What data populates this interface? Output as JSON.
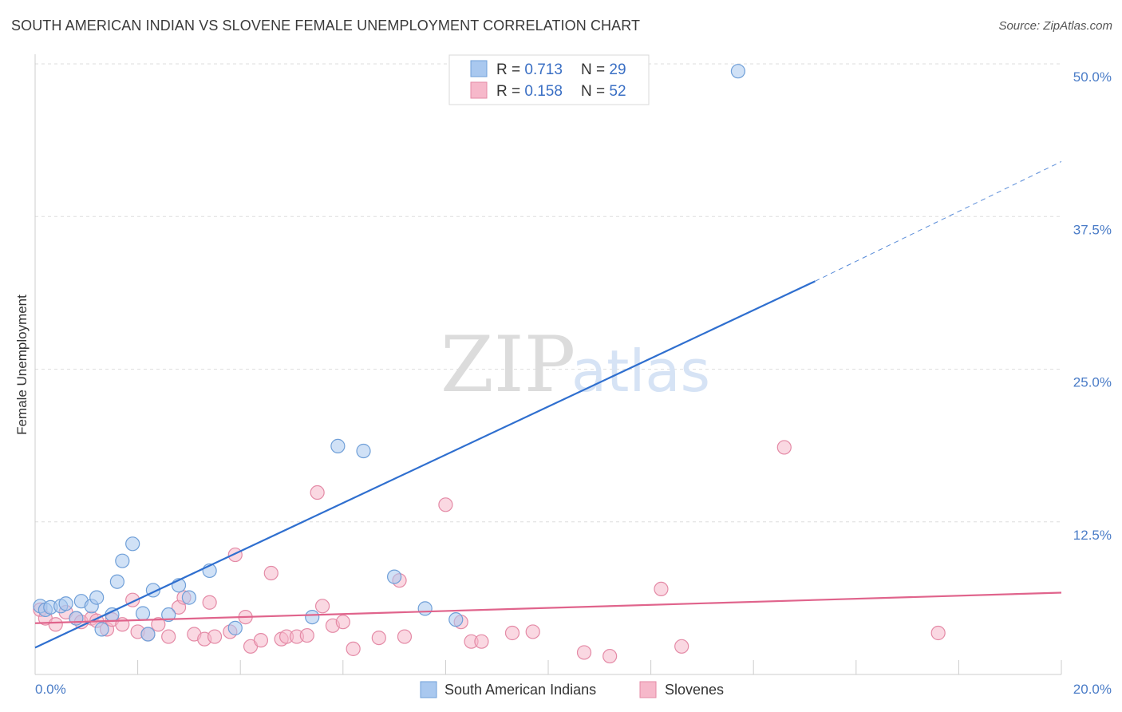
{
  "title": "SOUTH AMERICAN INDIAN VS SLOVENE FEMALE UNEMPLOYMENT CORRELATION CHART",
  "source": "Source: ZipAtlas.com",
  "watermark": {
    "zip": "ZIP",
    "atlas": "atlas"
  },
  "legend": [
    {
      "r_label": "R = ",
      "r_value": "0.713",
      "n_label": "N = ",
      "n_value": "29",
      "color": "#a9c8ef"
    },
    {
      "r_label": "R = ",
      "r_value": "0.158",
      "n_label": "N = ",
      "n_value": "52",
      "color": "#f6b8ca"
    }
  ],
  "chart_data": {
    "type": "scatter",
    "title": "SOUTH AMERICAN INDIAN VS SLOVENE FEMALE UNEMPLOYMENT CORRELATION CHART",
    "xlabel": "",
    "ylabel": "Female Unemployment",
    "xlim": [
      0,
      20
    ],
    "ylim": [
      0,
      50
    ],
    "x_tick_labels": [
      "0.0%",
      "20.0%"
    ],
    "y_ticks": [
      12.5,
      25.0,
      37.5,
      50.0
    ],
    "y_tick_labels": [
      "12.5%",
      "25.0%",
      "37.5%",
      "50.0%"
    ],
    "grid": true,
    "legend_position": "top-center",
    "series": [
      {
        "name": "South American Indians",
        "color": "#a9c8ef",
        "edge": "#6f9fd8",
        "trend_color": "#2f6fcf",
        "trend": {
          "x0": 0,
          "y0": 2.2,
          "x1": 15.2,
          "y1": 32.2,
          "dash_to_x": 20,
          "dash_to_y": 42.0
        },
        "points": [
          [
            0.1,
            5.6
          ],
          [
            0.2,
            5.3
          ],
          [
            0.3,
            5.5
          ],
          [
            0.5,
            5.6
          ],
          [
            0.6,
            5.8
          ],
          [
            0.8,
            4.6
          ],
          [
            0.9,
            6.0
          ],
          [
            1.1,
            5.6
          ],
          [
            1.2,
            6.3
          ],
          [
            1.3,
            3.7
          ],
          [
            1.5,
            4.9
          ],
          [
            1.6,
            7.6
          ],
          [
            1.7,
            9.3
          ],
          [
            1.9,
            10.7
          ],
          [
            2.1,
            5.0
          ],
          [
            2.2,
            3.3
          ],
          [
            2.3,
            6.9
          ],
          [
            2.6,
            4.9
          ],
          [
            2.8,
            7.3
          ],
          [
            3.0,
            6.3
          ],
          [
            3.4,
            8.5
          ],
          [
            3.9,
            3.8
          ],
          [
            5.4,
            4.7
          ],
          [
            5.9,
            18.7
          ],
          [
            6.4,
            18.3
          ],
          [
            7.0,
            8.0
          ],
          [
            7.6,
            5.4
          ],
          [
            8.2,
            4.5
          ],
          [
            13.7,
            49.4
          ]
        ]
      },
      {
        "name": "Slovenes",
        "color": "#f6b8ca",
        "edge": "#e48aa6",
        "trend_color": "#e0648c",
        "trend": {
          "x0": 0,
          "y0": 4.2,
          "x1": 20,
          "y1": 6.7
        },
        "points": [
          [
            0.1,
            5.3
          ],
          [
            0.2,
            4.6
          ],
          [
            0.4,
            4.1
          ],
          [
            0.6,
            5.1
          ],
          [
            0.8,
            4.6
          ],
          [
            0.9,
            4.3
          ],
          [
            1.1,
            4.6
          ],
          [
            1.2,
            4.4
          ],
          [
            1.4,
            3.7
          ],
          [
            1.5,
            4.5
          ],
          [
            1.7,
            4.1
          ],
          [
            1.9,
            6.1
          ],
          [
            2.0,
            3.5
          ],
          [
            2.2,
            3.3
          ],
          [
            2.4,
            4.1
          ],
          [
            2.6,
            3.1
          ],
          [
            2.8,
            5.5
          ],
          [
            2.9,
            6.3
          ],
          [
            3.1,
            3.3
          ],
          [
            3.3,
            2.9
          ],
          [
            3.4,
            5.9
          ],
          [
            3.5,
            3.1
          ],
          [
            3.8,
            3.5
          ],
          [
            3.9,
            9.8
          ],
          [
            4.1,
            4.7
          ],
          [
            4.2,
            2.3
          ],
          [
            4.4,
            2.8
          ],
          [
            4.6,
            8.3
          ],
          [
            4.8,
            2.9
          ],
          [
            4.9,
            3.1
          ],
          [
            5.1,
            3.1
          ],
          [
            5.3,
            3.2
          ],
          [
            5.5,
            14.9
          ],
          [
            5.6,
            5.6
          ],
          [
            5.8,
            4.0
          ],
          [
            6.0,
            4.3
          ],
          [
            6.2,
            2.1
          ],
          [
            6.7,
            3.0
          ],
          [
            7.1,
            7.7
          ],
          [
            7.2,
            3.1
          ],
          [
            8.0,
            13.9
          ],
          [
            8.3,
            4.3
          ],
          [
            8.5,
            2.7
          ],
          [
            8.7,
            2.7
          ],
          [
            9.3,
            3.4
          ],
          [
            9.7,
            3.5
          ],
          [
            10.7,
            1.8
          ],
          [
            11.2,
            1.5
          ],
          [
            12.2,
            7.0
          ],
          [
            12.6,
            2.3
          ],
          [
            14.6,
            18.6
          ],
          [
            17.6,
            3.4
          ]
        ]
      }
    ]
  }
}
